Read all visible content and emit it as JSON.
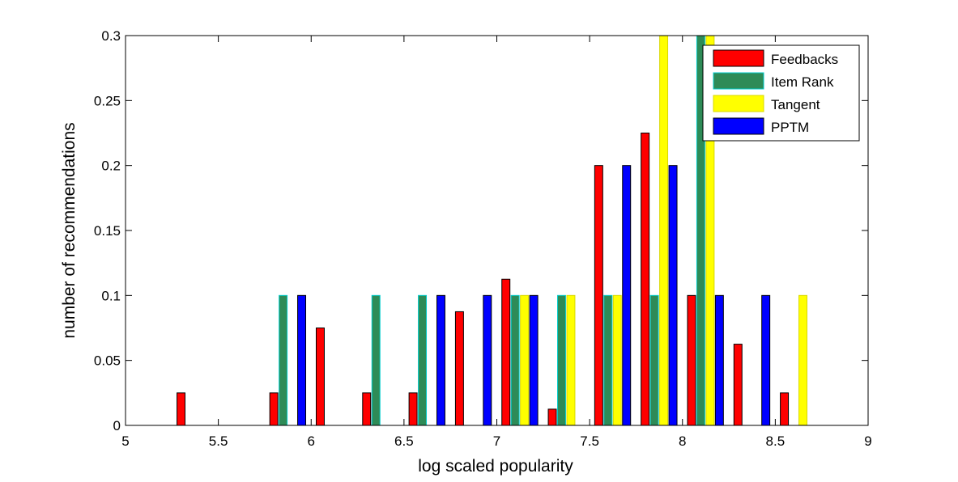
{
  "chart_data": {
    "type": "bar",
    "xlabel": "log scaled popularity",
    "ylabel": "number of recommendations",
    "xlim": [
      5,
      9
    ],
    "ylim": [
      0,
      0.3
    ],
    "x_ticks": [
      "5",
      "5.5",
      "6",
      "6.5",
      "7",
      "7.5",
      "8",
      "8.5",
      "9"
    ],
    "y_ticks": [
      "0",
      "0.05",
      "0.1",
      "0.15",
      "0.2",
      "0.25",
      "0.3"
    ],
    "grid": false,
    "legend_position": "top-right",
    "bin_centers": [
      5.125,
      5.375,
      5.625,
      5.875,
      6.125,
      6.375,
      6.625,
      6.875,
      7.125,
      7.375,
      7.625,
      7.875,
      8.125,
      8.375,
      8.625,
      8.875
    ],
    "series": [
      {
        "name": "Feedbacks",
        "color": "#ff0000",
        "edge": "#000000",
        "values": [
          0,
          0.025,
          0,
          0.025,
          0.075,
          0.025,
          0.025,
          0.0875,
          0.1125,
          0.0125,
          0.2,
          0.225,
          0.1,
          0.0625,
          0.025,
          0
        ]
      },
      {
        "name": "Item Rank",
        "color": "#2e8b57",
        "edge": "#00cccc",
        "values": [
          0,
          0,
          0,
          0.1,
          0,
          0.1,
          0.1,
          0,
          0.1,
          0.1,
          0.1,
          0.1,
          0.3,
          0,
          0,
          0
        ]
      },
      {
        "name": "Tangent",
        "color": "#ffff00",
        "edge": "#d8d800",
        "values": [
          0,
          0,
          0,
          0,
          0,
          0,
          0,
          0,
          0.1,
          0.1,
          0.1,
          0.3,
          0.3,
          0,
          0.1,
          0
        ]
      },
      {
        "name": "PPTM",
        "color": "#0000ff",
        "edge": "#000000",
        "values": [
          0,
          0,
          0,
          0.1,
          0,
          0,
          0.1,
          0.1,
          0.1,
          0,
          0.2,
          0.2,
          0.1,
          0.1,
          0,
          0
        ]
      }
    ]
  }
}
